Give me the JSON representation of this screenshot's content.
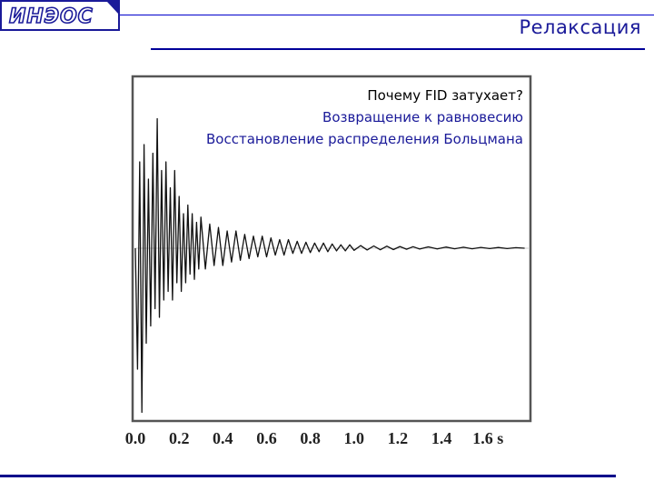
{
  "header": {
    "logo_text": "ИНЭОС",
    "title": "Релаксация",
    "colors": {
      "accent": "#0000cc",
      "title": "#1a1a99"
    }
  },
  "annotations": {
    "line1": "Почему FID затухает?",
    "line2": "Возвращение к равновесию",
    "line3": "Восстановление распределения Больцмана"
  },
  "chart_data": {
    "type": "line",
    "title": "",
    "xlabel": "",
    "ylabel": "",
    "xlim": [
      0.0,
      1.79
    ],
    "ylim": [
      -1.0,
      1.0
    ],
    "x_ticks": [
      "0.0",
      "0.2",
      "0.4",
      "0.6",
      "0.8",
      "1.0",
      "1.2",
      "1.4",
      "1.6 s"
    ],
    "x_tick_values": [
      0.0,
      0.2,
      0.4,
      0.6,
      0.8,
      1.0,
      1.2,
      1.4,
      1.6
    ],
    "grid": false,
    "series": [
      {
        "name": "",
        "color": "#111111",
        "x": [
          0.0,
          0.01,
          0.02,
          0.03,
          0.04,
          0.05,
          0.06,
          0.07,
          0.08,
          0.09,
          0.1,
          0.11,
          0.12,
          0.13,
          0.14,
          0.15,
          0.16,
          0.17,
          0.18,
          0.19,
          0.2,
          0.21,
          0.22,
          0.23,
          0.24,
          0.25,
          0.26,
          0.27,
          0.28,
          0.29,
          0.3,
          0.32,
          0.34,
          0.36,
          0.38,
          0.4,
          0.42,
          0.44,
          0.46,
          0.48,
          0.5,
          0.52,
          0.54,
          0.56,
          0.58,
          0.6,
          0.62,
          0.64,
          0.66,
          0.68,
          0.7,
          0.72,
          0.74,
          0.76,
          0.78,
          0.8,
          0.82,
          0.84,
          0.86,
          0.88,
          0.9,
          0.92,
          0.94,
          0.96,
          0.98,
          1.0,
          1.03,
          1.06,
          1.09,
          1.12,
          1.15,
          1.18,
          1.21,
          1.24,
          1.27,
          1.3,
          1.34,
          1.38,
          1.42,
          1.46,
          1.5,
          1.54,
          1.58,
          1.62,
          1.66,
          1.7,
          1.74,
          1.78
        ],
        "values": [
          0.0,
          -0.7,
          0.5,
          -0.95,
          0.6,
          -0.55,
          0.4,
          -0.45,
          0.55,
          -0.35,
          0.75,
          -0.4,
          0.45,
          -0.3,
          0.5,
          -0.25,
          0.35,
          -0.3,
          0.45,
          -0.2,
          0.3,
          -0.25,
          0.2,
          -0.2,
          0.25,
          -0.15,
          0.2,
          -0.18,
          0.15,
          -0.12,
          0.18,
          -0.12,
          0.14,
          -0.1,
          0.12,
          -0.1,
          0.1,
          -0.08,
          0.1,
          -0.07,
          0.08,
          -0.06,
          0.07,
          -0.05,
          0.07,
          -0.05,
          0.06,
          -0.04,
          0.05,
          -0.04,
          0.05,
          -0.03,
          0.04,
          -0.03,
          0.035,
          -0.025,
          0.03,
          -0.02,
          0.03,
          -0.02,
          0.025,
          -0.015,
          0.02,
          -0.015,
          0.02,
          -0.012,
          0.015,
          -0.01,
          0.013,
          -0.009,
          0.012,
          -0.008,
          0.01,
          -0.006,
          0.009,
          -0.005,
          0.008,
          -0.004,
          0.007,
          -0.003,
          0.006,
          -0.003,
          0.005,
          -0.002,
          0.004,
          -0.002,
          0.003,
          0.0
        ]
      }
    ]
  }
}
